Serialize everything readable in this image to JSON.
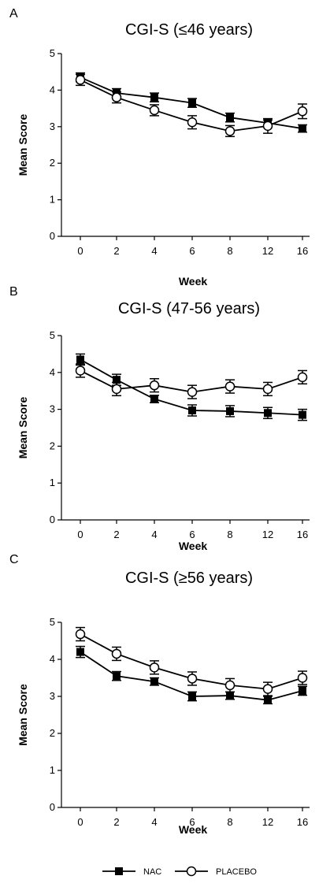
{
  "chart_data": [
    {
      "panel": "A",
      "type": "line",
      "title": "CGI-S (≤46 years)",
      "xlabel": "Week",
      "ylabel": "Mean Score",
      "categories": [
        "0",
        "2",
        "4",
        "6",
        "8",
        "12",
        "16"
      ],
      "yticks": [
        "0",
        "1",
        "2",
        "3",
        "4",
        "5"
      ],
      "ylim": [
        0,
        5
      ],
      "series": [
        {
          "name": "NAC",
          "marker": "filled-square",
          "values": [
            4.35,
            3.92,
            3.8,
            3.65,
            3.25,
            3.1,
            2.95
          ],
          "err": [
            0.12,
            0.12,
            0.12,
            0.12,
            0.12,
            0.08,
            0.1
          ]
        },
        {
          "name": "PLACEBO",
          "marker": "open-circle",
          "values": [
            4.28,
            3.8,
            3.45,
            3.12,
            2.88,
            3.02,
            3.42
          ],
          "err": [
            0.15,
            0.15,
            0.15,
            0.18,
            0.15,
            0.2,
            0.2
          ]
        }
      ]
    },
    {
      "panel": "B",
      "type": "line",
      "title": "CGI-S (47-56 years)",
      "xlabel": "Week",
      "ylabel": "Mean Score",
      "categories": [
        "0",
        "2",
        "4",
        "6",
        "8",
        "12",
        "16"
      ],
      "yticks": [
        "0",
        "1",
        "2",
        "3",
        "4",
        "5"
      ],
      "ylim": [
        0,
        5
      ],
      "series": [
        {
          "name": "NAC",
          "marker": "filled-square",
          "values": [
            4.35,
            3.8,
            3.28,
            2.97,
            2.95,
            2.9,
            2.85
          ],
          "err": [
            0.15,
            0.15,
            0.1,
            0.15,
            0.15,
            0.15,
            0.15
          ]
        },
        {
          "name": "PLACEBO",
          "marker": "open-circle",
          "values": [
            4.05,
            3.55,
            3.65,
            3.47,
            3.62,
            3.55,
            3.87
          ],
          "err": [
            0.18,
            0.18,
            0.18,
            0.18,
            0.18,
            0.18,
            0.18
          ]
        }
      ]
    },
    {
      "panel": "C",
      "type": "line",
      "title": "CGI-S (≥56 years)",
      "xlabel": "Week",
      "ylabel": "Mean Score",
      "categories": [
        "0",
        "2",
        "4",
        "6",
        "8",
        "12",
        "16"
      ],
      "yticks": [
        "0",
        "1",
        "2",
        "3",
        "4",
        "5"
      ],
      "ylim": [
        0,
        5
      ],
      "series": [
        {
          "name": "NAC",
          "marker": "filled-square",
          "values": [
            4.2,
            3.55,
            3.4,
            3.0,
            3.02,
            2.9,
            3.15
          ],
          "err": [
            0.15,
            0.12,
            0.1,
            0.12,
            0.1,
            0.1,
            0.12
          ]
        },
        {
          "name": "PLACEBO",
          "marker": "open-circle",
          "values": [
            4.68,
            4.15,
            3.78,
            3.48,
            3.3,
            3.2,
            3.5
          ],
          "err": [
            0.18,
            0.18,
            0.18,
            0.18,
            0.18,
            0.18,
            0.18
          ]
        }
      ]
    }
  ],
  "legend": [
    {
      "label": "NAC",
      "marker": "filled-square"
    },
    {
      "label": "PLACEBO",
      "marker": "open-circle"
    }
  ],
  "legend_position": "bottom-center",
  "grid": false
}
